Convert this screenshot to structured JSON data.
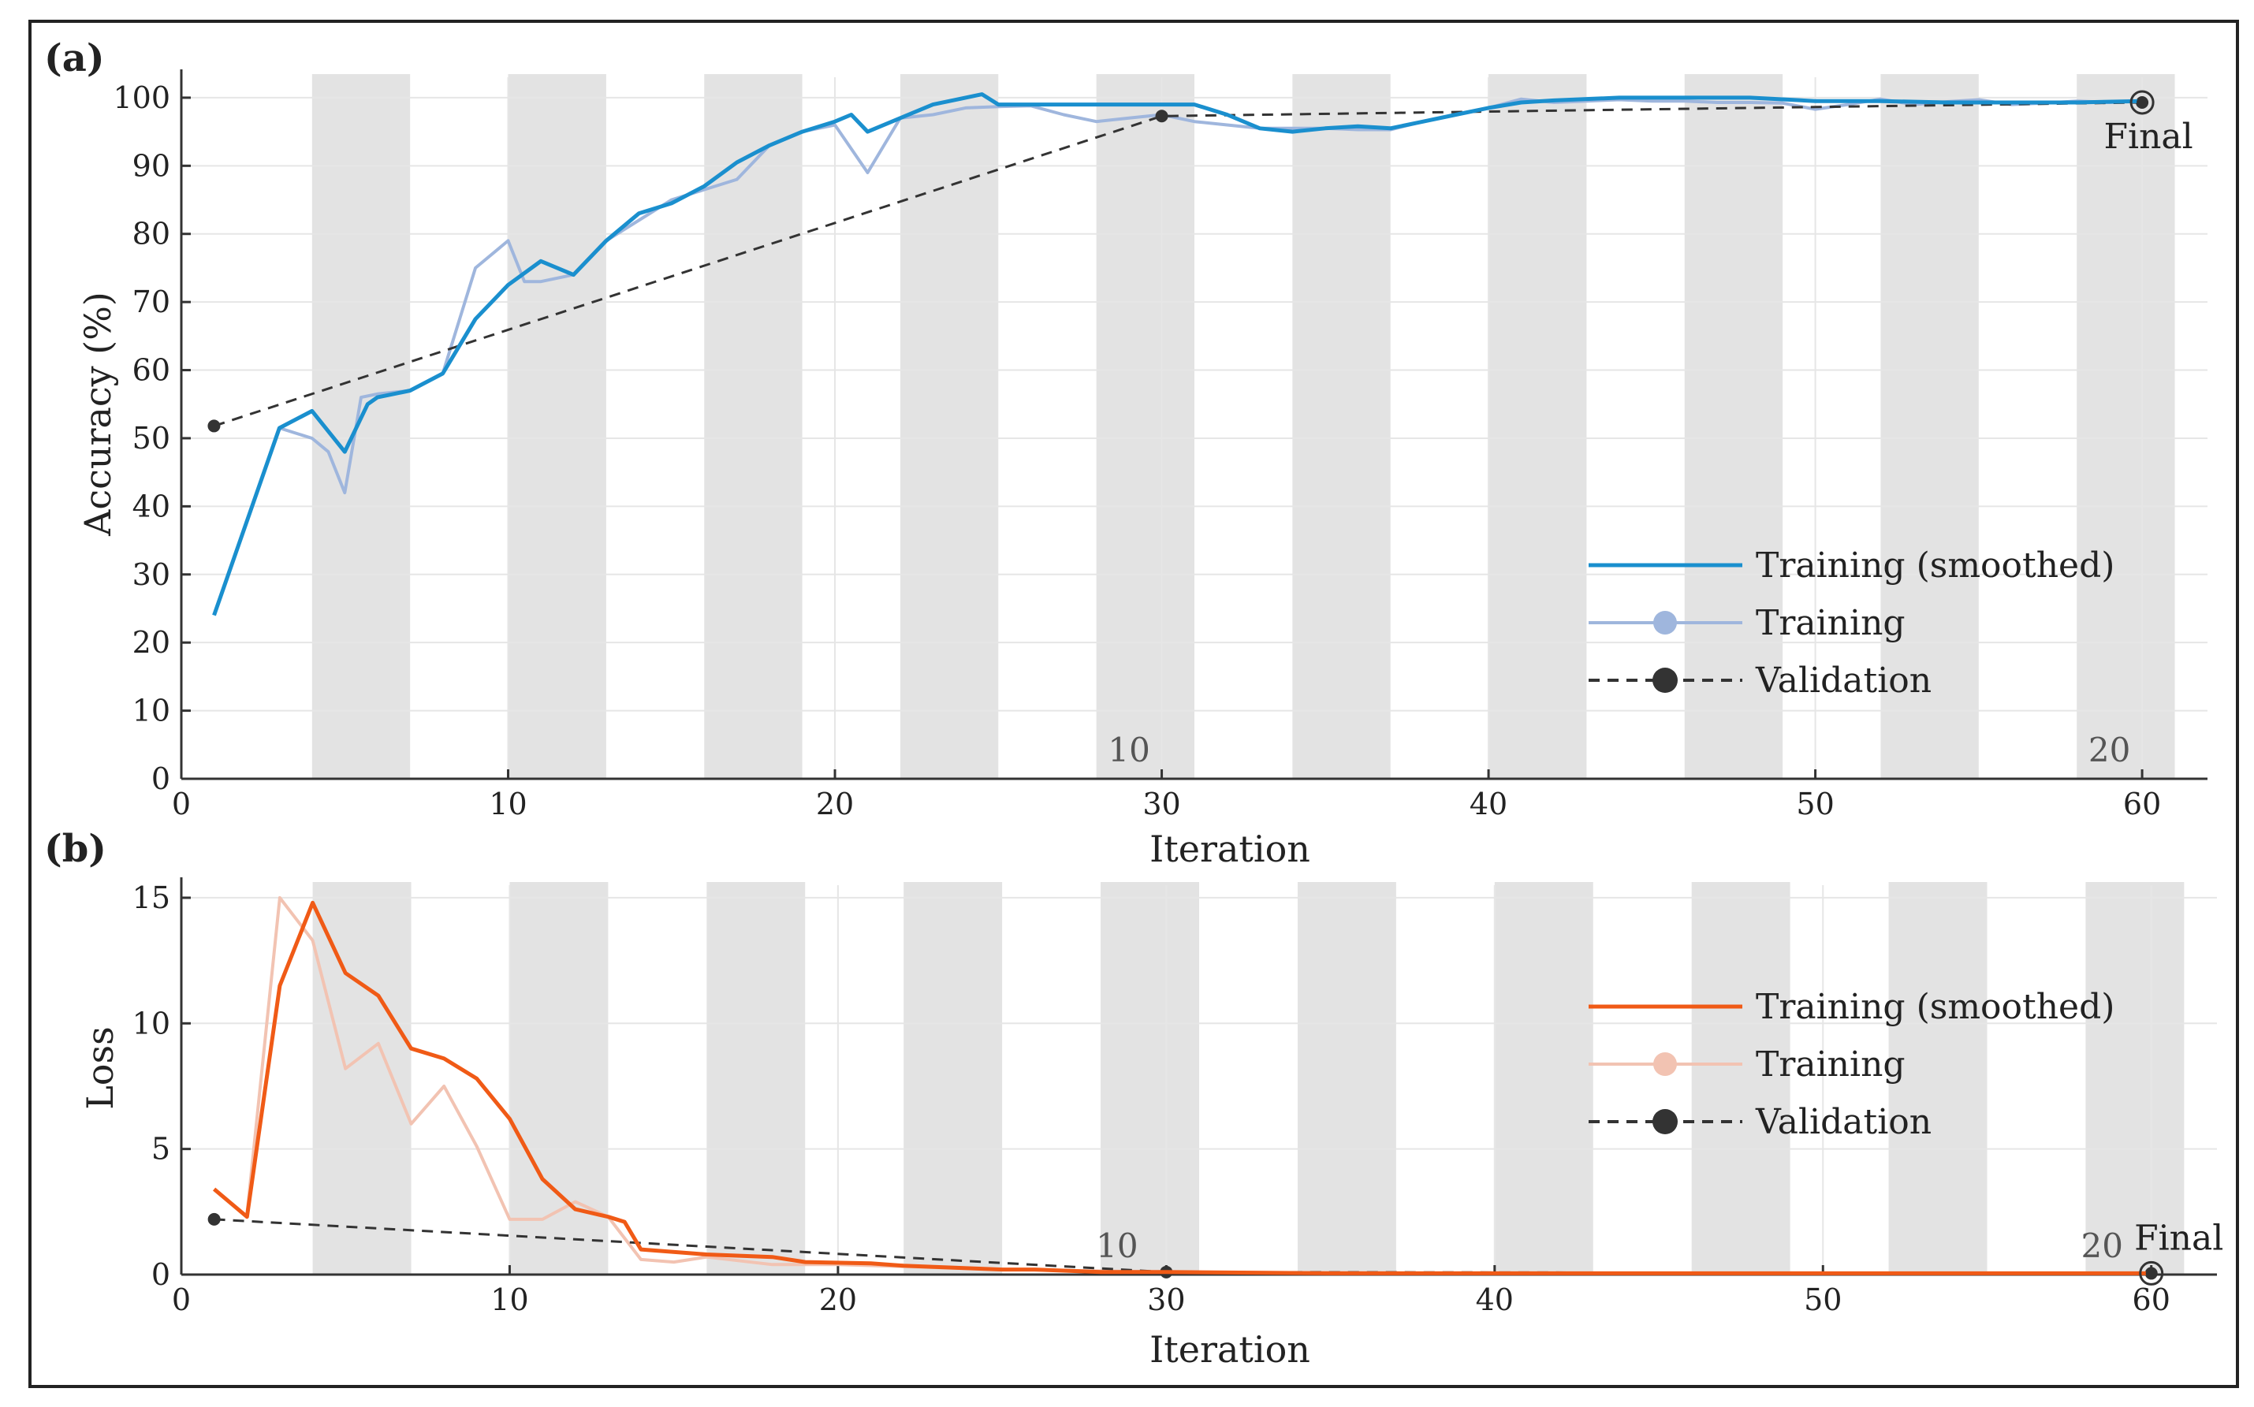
{
  "chart_data": [
    {
      "panel": "(a)",
      "type": "line",
      "xlabel": "Iteration",
      "ylabel": "Accuracy (%)",
      "xlim": [
        0,
        62
      ],
      "ylim": [
        0,
        103
      ],
      "x_ticks": [
        0,
        10,
        20,
        30,
        40,
        50,
        60
      ],
      "y_ticks": [
        0,
        10,
        20,
        30,
        40,
        50,
        60,
        70,
        80,
        90,
        100
      ],
      "grid": true,
      "epoch_bands": [
        [
          4,
          7
        ],
        [
          10,
          13
        ],
        [
          16,
          19
        ],
        [
          22,
          25
        ],
        [
          28,
          31
        ],
        [
          34,
          37
        ],
        [
          40,
          43
        ],
        [
          46,
          49
        ],
        [
          52,
          55
        ],
        [
          58,
          61
        ]
      ],
      "epoch_labels": [
        {
          "x": 29,
          "text": "10"
        },
        {
          "x": 59,
          "text": "20"
        }
      ],
      "series": [
        {
          "name": "Training (smoothed)",
          "color": "#1a8fce",
          "x": [
            1,
            3,
            4,
            5,
            5.7,
            6,
            7,
            8,
            9,
            10,
            11,
            12,
            13,
            14,
            15,
            16,
            17,
            18,
            19,
            20,
            20.5,
            21,
            22,
            23,
            24.5,
            25,
            26,
            27,
            28,
            29,
            30,
            31,
            32,
            33,
            34,
            35,
            36,
            37,
            38,
            39,
            40,
            41,
            42,
            44,
            46,
            48,
            50,
            52,
            54,
            56,
            58,
            60
          ],
          "y": [
            24,
            51.5,
            54,
            48,
            55,
            56,
            57,
            59.5,
            67.5,
            72.5,
            76,
            74,
            79,
            83,
            84.5,
            87,
            90.5,
            93,
            95,
            96.5,
            97.5,
            95,
            97,
            99,
            100.5,
            99,
            99,
            99,
            99,
            99,
            99,
            99,
            97.5,
            95.5,
            95,
            95.5,
            95.8,
            95.5,
            96.5,
            97.5,
            98.5,
            99.3,
            99.6,
            100,
            100,
            100,
            99.5,
            99.5,
            99.3,
            99.3,
            99.3,
            99.5
          ]
        },
        {
          "name": "Training",
          "color": "#9fb6dd",
          "x": [
            3,
            4,
            4.5,
            5,
            5.5,
            6,
            7,
            8,
            9,
            10,
            10.5,
            11,
            12,
            13,
            14,
            15,
            16,
            17,
            18,
            19,
            20,
            21,
            22,
            23,
            24,
            25,
            26,
            27,
            28,
            29,
            30,
            31,
            32,
            33,
            34,
            35,
            36,
            37,
            38,
            39,
            40,
            41,
            42,
            43,
            44,
            45,
            46,
            47,
            48,
            49,
            50,
            51,
            52,
            53,
            54,
            55,
            56,
            57,
            58,
            59,
            60
          ],
          "y": [
            51.5,
            50,
            48,
            42,
            56,
            56.5,
            57,
            59.5,
            75,
            79,
            73,
            73,
            74,
            79,
            82,
            85,
            86.5,
            88,
            93,
            95,
            96,
            89,
            97,
            97.5,
            98.5,
            98.7,
            98.8,
            97.5,
            96.5,
            97,
            97.5,
            96.5,
            96,
            95.5,
            95.5,
            95.5,
            95.3,
            95.3,
            96.5,
            97.5,
            98.5,
            99.8,
            99.3,
            99.5,
            99.7,
            99.5,
            99.5,
            99.3,
            99.3,
            99.2,
            98.3,
            99,
            99.8,
            99,
            99.4,
            99.7,
            99,
            99.2,
            99.5,
            99.3,
            99.6
          ]
        },
        {
          "name": "Validation",
          "color": "#333333",
          "dash": true,
          "x": [
            1,
            30,
            60
          ],
          "y": [
            51.8,
            97.3,
            99.3
          ]
        }
      ],
      "annotations": [
        {
          "x": 60,
          "y": 99.3,
          "text": "Final"
        }
      ],
      "legend": {
        "placement": "lower-right",
        "entries": [
          "Training (smoothed)",
          "Training",
          "Validation"
        ]
      }
    },
    {
      "panel": "(b)",
      "type": "line",
      "xlabel": "Iteration",
      "ylabel": "Loss",
      "xlim": [
        0,
        62
      ],
      "ylim": [
        0,
        15.5
      ],
      "x_ticks": [
        0,
        10,
        20,
        30,
        40,
        50,
        60
      ],
      "y_ticks": [
        0,
        5,
        10,
        15
      ],
      "grid": true,
      "epoch_bands": [
        [
          4,
          7
        ],
        [
          10,
          13
        ],
        [
          16,
          19
        ],
        [
          22,
          25
        ],
        [
          28,
          31
        ],
        [
          34,
          37
        ],
        [
          40,
          43
        ],
        [
          46,
          49
        ],
        [
          52,
          55
        ],
        [
          58,
          61
        ]
      ],
      "epoch_labels": [
        {
          "x": 28.5,
          "text": "10"
        },
        {
          "x": 58.5,
          "text": "20"
        }
      ],
      "series": [
        {
          "name": "Training (smoothed)",
          "color": "#f05a16",
          "x": [
            1,
            2,
            3,
            4,
            5,
            6,
            7,
            8,
            9,
            10,
            11,
            12,
            13,
            13.5,
            14,
            16,
            18,
            19,
            21,
            22,
            25,
            26,
            28,
            30,
            35,
            40,
            50,
            60
          ],
          "y": [
            3.4,
            2.3,
            11.5,
            14.8,
            12,
            11.1,
            9,
            8.6,
            7.8,
            6.2,
            3.8,
            2.6,
            2.3,
            2.1,
            1.0,
            0.8,
            0.7,
            0.5,
            0.45,
            0.35,
            0.2,
            0.2,
            0.1,
            0.1,
            0.05,
            0.05,
            0.05,
            0.05
          ]
        },
        {
          "name": "Training",
          "color": "#f2c3b2",
          "x": [
            2,
            3,
            4,
            5,
            6,
            7,
            8,
            9,
            10,
            11,
            12,
            13,
            14,
            15,
            16,
            18,
            20,
            25,
            30,
            40,
            50,
            60
          ],
          "y": [
            2.4,
            15,
            13.3,
            8.2,
            9.2,
            6.0,
            7.5,
            5.1,
            2.2,
            2.2,
            2.9,
            2.3,
            0.6,
            0.5,
            0.7,
            0.4,
            0.4,
            0.2,
            0.1,
            0.05,
            0.05,
            0.05
          ]
        },
        {
          "name": "Validation",
          "color": "#333333",
          "dash": true,
          "x": [
            1,
            30,
            60
          ],
          "y": [
            2.2,
            0.1,
            0.05
          ]
        }
      ],
      "annotations": [
        {
          "x": 60,
          "y": 0.05,
          "text": "Final"
        }
      ],
      "legend": {
        "placement": "right",
        "entries": [
          "Training (smoothed)",
          "Training",
          "Validation"
        ]
      }
    }
  ]
}
